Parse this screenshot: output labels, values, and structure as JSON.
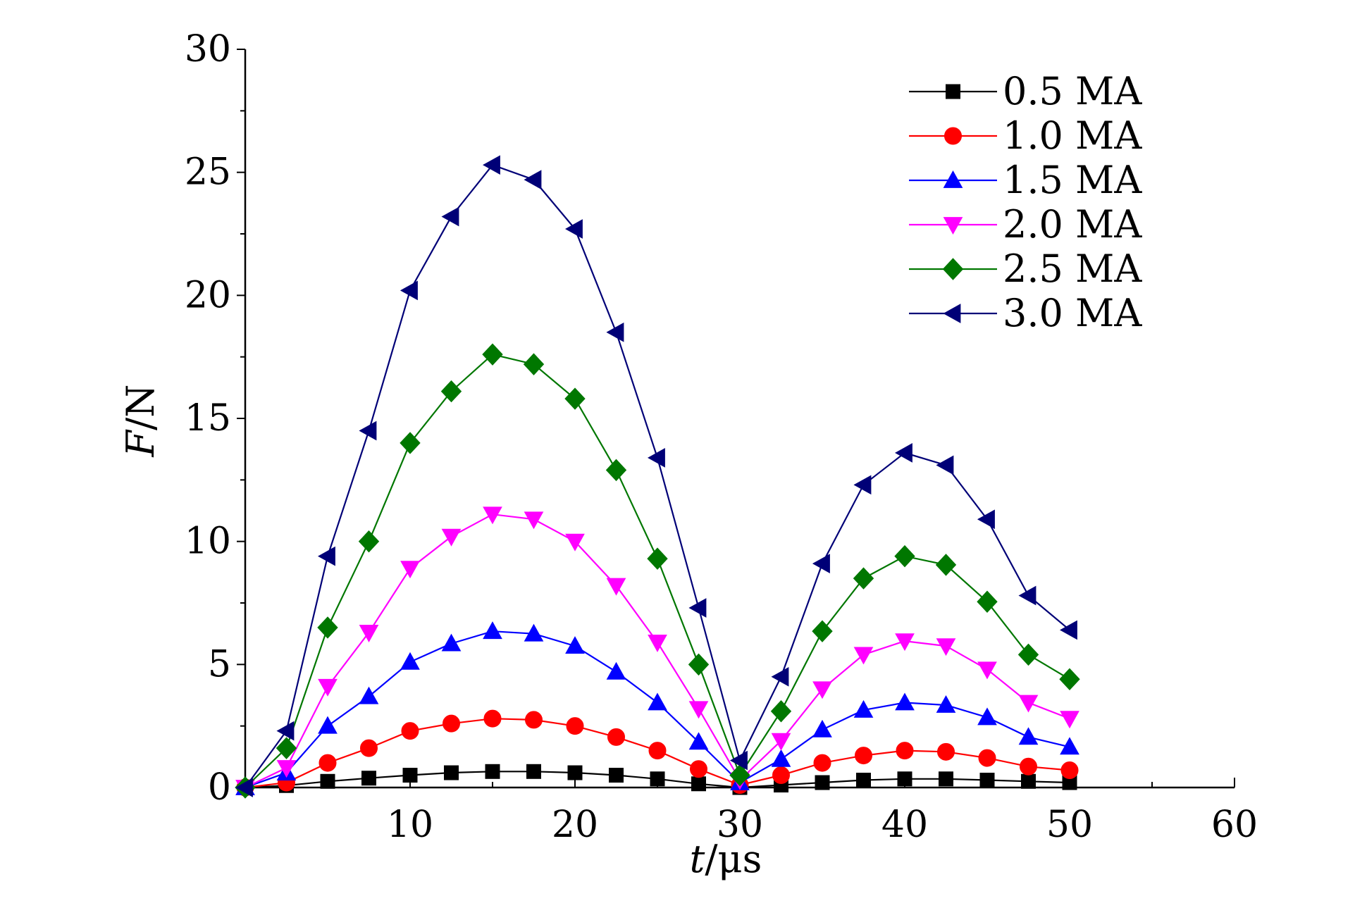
{
  "chart_data": {
    "type": "line",
    "title": "",
    "xlabel_italic": "t",
    "xlabel_unit": "/μs",
    "ylabel_italic": "F",
    "ylabel_unit": "/N",
    "xlim": [
      0,
      60
    ],
    "ylim": [
      0,
      30
    ],
    "xticks": [
      10,
      20,
      30,
      40,
      50,
      60
    ],
    "yticks": [
      0,
      5,
      10,
      15,
      20,
      25,
      30
    ],
    "x": [
      0,
      2.5,
      5,
      7.5,
      10,
      12.5,
      15,
      17.5,
      20,
      22.5,
      25,
      27.5,
      30,
      32.5,
      35,
      37.5,
      40,
      42.5,
      45,
      47.5,
      50
    ],
    "legend_position": "top-right",
    "series": [
      {
        "name": "0.5 MA",
        "color": "#000000",
        "marker": "square",
        "values": [
          0.0,
          0.08,
          0.25,
          0.38,
          0.5,
          0.6,
          0.65,
          0.65,
          0.6,
          0.5,
          0.35,
          0.15,
          0.0,
          0.1,
          0.2,
          0.3,
          0.35,
          0.35,
          0.3,
          0.25,
          0.2
        ]
      },
      {
        "name": "1.0 MA",
        "color": "#ff0000",
        "marker": "circle",
        "values": [
          0.0,
          0.2,
          1.0,
          1.6,
          2.3,
          2.6,
          2.8,
          2.75,
          2.5,
          2.05,
          1.5,
          0.75,
          0.1,
          0.5,
          1.0,
          1.3,
          1.5,
          1.45,
          1.2,
          0.85,
          0.7
        ]
      },
      {
        "name": "1.5 MA",
        "color": "#0000ff",
        "marker": "triangle-up",
        "values": [
          0.0,
          0.6,
          2.5,
          3.7,
          5.1,
          5.85,
          6.35,
          6.25,
          5.75,
          4.7,
          3.45,
          1.85,
          0.2,
          1.15,
          2.35,
          3.15,
          3.45,
          3.35,
          2.85,
          2.05,
          1.65
        ]
      },
      {
        "name": "2.0 MA",
        "color": "#ff00ff",
        "marker": "triangle-down",
        "values": [
          0.0,
          0.8,
          4.1,
          6.3,
          8.9,
          10.2,
          11.1,
          10.9,
          10.0,
          8.2,
          5.9,
          3.2,
          0.3,
          1.9,
          4.0,
          5.4,
          5.95,
          5.75,
          4.8,
          3.45,
          2.8
        ]
      },
      {
        "name": "2.5 MA",
        "color": "#007700",
        "marker": "diamond",
        "values": [
          0.0,
          1.6,
          6.5,
          10.0,
          14.0,
          16.1,
          17.6,
          17.2,
          15.8,
          12.9,
          9.3,
          5.0,
          0.5,
          3.1,
          6.35,
          8.5,
          9.4,
          9.05,
          7.55,
          5.4,
          4.4
        ]
      },
      {
        "name": "3.0 MA",
        "color": "#000077",
        "marker": "triangle-left",
        "values": [
          0.0,
          2.3,
          9.4,
          14.5,
          20.2,
          23.2,
          25.3,
          24.7,
          22.7,
          18.5,
          13.4,
          7.3,
          1.1,
          4.5,
          9.1,
          12.3,
          13.6,
          13.1,
          10.9,
          7.8,
          6.4
        ]
      }
    ]
  }
}
